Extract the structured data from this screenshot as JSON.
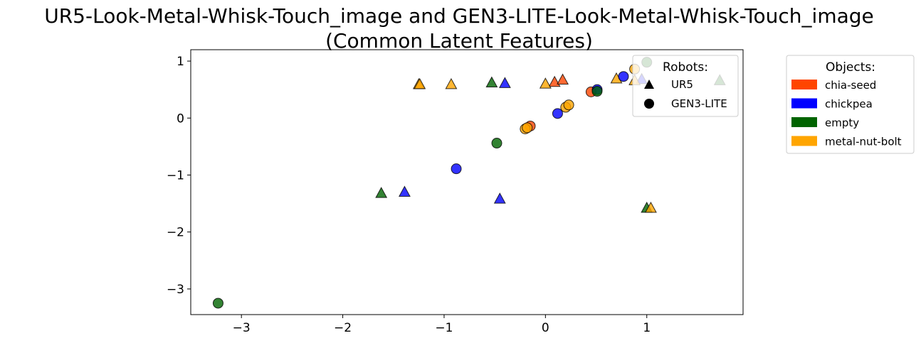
{
  "chart_data": {
    "type": "scatter",
    "title_line1": "UR5-Look-Metal-Whisk-Touch_image and GEN3-LITE-Look-Metal-Whisk-Touch_image",
    "title_line2": "(Common Latent Features)",
    "xlabel": "",
    "ylabel": "",
    "xlim": [
      -3.5,
      1.95
    ],
    "ylim": [
      -3.45,
      1.2
    ],
    "x_ticks": [
      -3,
      -2,
      -1,
      0,
      1
    ],
    "x_tick_labels": [
      "−3",
      "−2",
      "−1",
      "0",
      "1"
    ],
    "y_ticks": [
      1,
      0,
      -1,
      -2,
      -3
    ],
    "y_tick_labels": [
      "1",
      "0",
      "−1",
      "−2",
      "−3"
    ],
    "grid": false,
    "robots_legend": {
      "title": "Robots:",
      "placement": "top-right inside",
      "entries": [
        {
          "label": "UR5",
          "marker": "triangle"
        },
        {
          "label": "GEN3-LITE",
          "marker": "circle"
        }
      ]
    },
    "objects_legend": {
      "title": "Objects:",
      "placement": "outside right",
      "entries": [
        {
          "label": "chia-seed",
          "color": "#ff4500"
        },
        {
          "label": "chickpea",
          "color": "#0000ff"
        },
        {
          "label": "empty",
          "color": "#006400"
        },
        {
          "label": "metal-nut-bolt",
          "color": "#ffa500"
        }
      ]
    },
    "series": [
      {
        "robot": "UR5",
        "object": "chia-seed",
        "marker": "triangle",
        "color": "#ff4500",
        "points": [
          [
            0.09,
            0.63
          ],
          [
            0.17,
            0.67
          ]
        ]
      },
      {
        "robot": "UR5",
        "object": "chickpea",
        "marker": "triangle",
        "color": "#0000ff",
        "points": [
          [
            -0.4,
            0.61
          ],
          [
            -1.39,
            -1.3
          ],
          [
            -0.45,
            -1.42
          ],
          [
            0.95,
            0.68
          ]
        ]
      },
      {
        "robot": "UR5",
        "object": "empty",
        "marker": "triangle",
        "color": "#006400",
        "points": [
          [
            -0.53,
            0.62
          ],
          [
            -1.62,
            -1.32
          ],
          [
            1.0,
            -1.58
          ],
          [
            1.72,
            0.66
          ]
        ]
      },
      {
        "robot": "UR5",
        "object": "metal-nut-bolt",
        "marker": "triangle",
        "color": "#ffa500",
        "points": [
          [
            -1.25,
            0.59
          ],
          [
            -1.24,
            0.59
          ],
          [
            -0.93,
            0.59
          ],
          [
            0.0,
            0.6
          ],
          [
            0.7,
            0.69
          ],
          [
            1.04,
            -1.58
          ],
          [
            0.88,
            0.66
          ]
        ]
      },
      {
        "robot": "GEN3-LITE",
        "object": "chia-seed",
        "marker": "circle",
        "color": "#ff4500",
        "points": [
          [
            -0.15,
            -0.14
          ],
          [
            0.45,
            0.46
          ]
        ]
      },
      {
        "robot": "GEN3-LITE",
        "object": "chickpea",
        "marker": "circle",
        "color": "#0000ff",
        "points": [
          [
            -0.88,
            -0.89
          ],
          [
            0.12,
            0.08
          ],
          [
            0.77,
            0.73
          ],
          [
            0.51,
            0.5
          ]
        ]
      },
      {
        "robot": "GEN3-LITE",
        "object": "empty",
        "marker": "circle",
        "color": "#006400",
        "points": [
          [
            -3.23,
            -3.25
          ],
          [
            -0.48,
            -0.44
          ],
          [
            0.51,
            0.47
          ],
          [
            1.0,
            0.98
          ]
        ]
      },
      {
        "robot": "GEN3-LITE",
        "object": "metal-nut-bolt",
        "marker": "circle",
        "color": "#ffa500",
        "points": [
          [
            -0.2,
            -0.19
          ],
          [
            -0.18,
            -0.17
          ],
          [
            0.2,
            0.19
          ],
          [
            0.23,
            0.23
          ],
          [
            0.88,
            0.86
          ]
        ]
      }
    ]
  }
}
